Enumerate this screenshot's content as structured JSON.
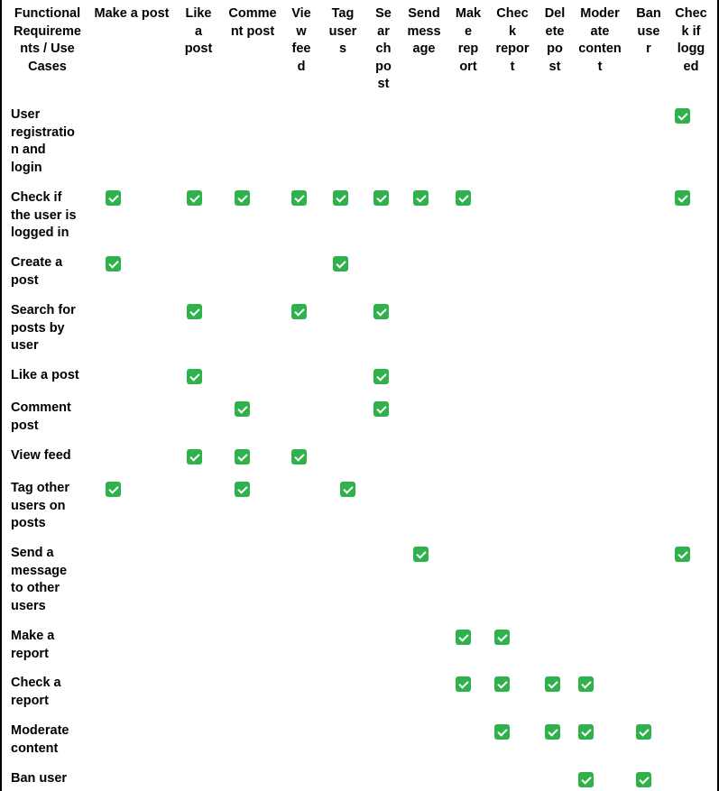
{
  "header": {
    "corner": [
      "Functional",
      "Requireme",
      "nts / Use",
      "Cases"
    ],
    "columns": [
      {
        "label": [
          "Make a post"
        ]
      },
      {
        "label": [
          "Like",
          "a",
          "post"
        ]
      },
      {
        "label": [
          "Comme",
          "nt post"
        ]
      },
      {
        "label": [
          "Vie",
          "w",
          "fee",
          "d"
        ]
      },
      {
        "label": [
          "Tag",
          "user",
          "s"
        ]
      },
      {
        "label": [
          "Se",
          "ar",
          "ch",
          "po",
          "st"
        ]
      },
      {
        "label": [
          "Send",
          "mess",
          "age"
        ]
      },
      {
        "label": [
          "Mak",
          "e",
          "rep",
          "ort"
        ]
      },
      {
        "label": [
          "Chec",
          "k",
          "repor",
          "t"
        ]
      },
      {
        "label": [
          "Del",
          "ete",
          "po",
          "st"
        ]
      },
      {
        "label": [
          "Moder",
          "ate",
          "conten",
          "t"
        ]
      },
      {
        "label": [
          "Ban",
          "use",
          "r"
        ]
      },
      {
        "label": [
          "Chec",
          "k if",
          "logg",
          "ed"
        ]
      }
    ]
  },
  "rows": [
    {
      "label": [
        "User",
        "registratio",
        "n and",
        "login"
      ],
      "checks": [
        12
      ]
    },
    {
      "label": [
        "Check if",
        "the user is",
        "logged in"
      ],
      "checks": [
        0,
        1,
        2,
        3,
        4,
        5,
        6,
        7,
        12
      ]
    },
    {
      "label": [
        "Create a",
        "post"
      ],
      "checks": [
        0,
        4
      ]
    },
    {
      "label": [
        "Search for",
        "posts by",
        "user"
      ],
      "checks": [
        1,
        3,
        5
      ]
    },
    {
      "label": [
        "Like a post"
      ],
      "checks": [
        1,
        5
      ]
    },
    {
      "label": [
        "Comment",
        "post"
      ],
      "checks": [
        2,
        5
      ]
    },
    {
      "label": [
        "View feed"
      ],
      "checks": [
        1,
        2,
        3
      ]
    },
    {
      "label": [
        "Tag other",
        "users on",
        "posts"
      ],
      "checks": [
        0,
        2,
        4
      ]
    },
    {
      "label": [
        "Send a",
        "message",
        "to other",
        "users"
      ],
      "checks": [
        6,
        12
      ]
    },
    {
      "label": [
        "Make a",
        "report"
      ],
      "checks": [
        7,
        8
      ]
    },
    {
      "label": [
        "Check a",
        "report"
      ],
      "checks": [
        7,
        8,
        9,
        10
      ]
    },
    {
      "label": [
        "Moderate",
        "content"
      ],
      "checks": [
        8,
        9,
        10,
        11
      ]
    },
    {
      "label": [
        "Ban user"
      ],
      "checks": [
        10,
        11
      ]
    }
  ]
}
